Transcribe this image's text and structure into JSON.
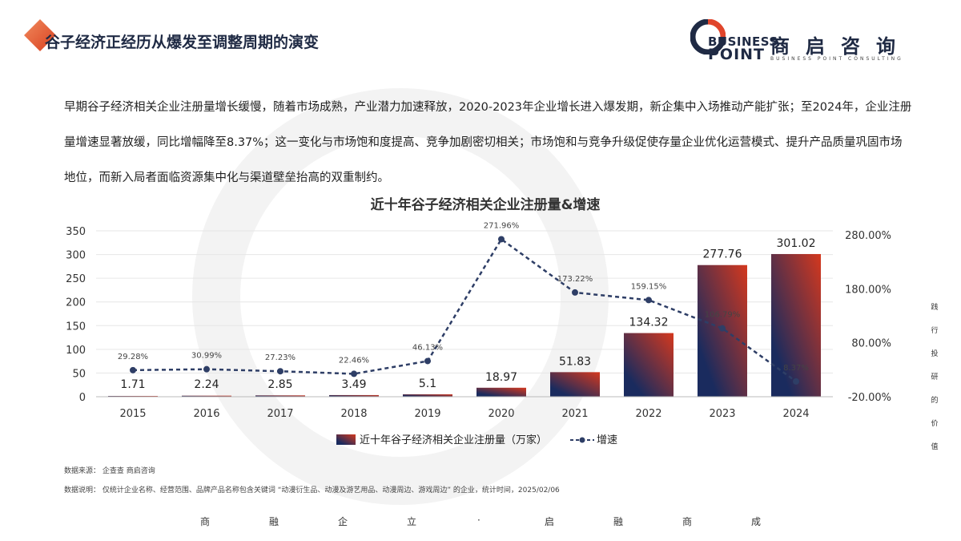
{
  "header": {
    "title": "谷子经济正经历从爆发至调整周期的演变"
  },
  "logo": {
    "en_line1": "BUSINESS",
    "en_line2": "POINT",
    "cn_name": "商启咨询",
    "en_subtitle": "BUSINESS POINT CONSULTING",
    "accent": "#e0452b",
    "brand": "#1f2a44"
  },
  "intro_text": "早期谷子经济相关企业注册量增长缓慢，随着市场成熟，产业潜力加速释放，2020-2023年企业增长进入爆发期，新企集中入场推动产能扩张；至2024年，企业注册量增速显著放缓，同比增幅降至8.37%；这一变化与市场饱和度提高、竞争加剧密切相关；市场饱和与竞争升级促使存量企业优化运营模式、提升产品质量巩固市场地位，而新入局者面临资源集中化与渠道壁垒抬高的双重制约。",
  "chart_data": {
    "type": "bar",
    "title": "近十年谷子经济相关企业注册量&增速",
    "categories": [
      "2015",
      "2016",
      "2017",
      "2018",
      "2019",
      "2020",
      "2021",
      "2022",
      "2023",
      "2024"
    ],
    "series": [
      {
        "name": "近十年谷子经济相关企业注册量（万家）",
        "type": "bar",
        "axis": "left",
        "values": [
          1.71,
          2.24,
          2.85,
          3.49,
          5.1,
          18.97,
          51.83,
          134.32,
          277.76,
          301.02
        ],
        "labels": [
          "1.71",
          "2.24",
          "2.85",
          "3.49",
          "5.1",
          "18.97",
          "51.83",
          "134.32",
          "277.76",
          "301.02"
        ]
      },
      {
        "name": "增速",
        "type": "line",
        "axis": "right",
        "values": [
          29.28,
          30.99,
          27.23,
          22.46,
          46.13,
          271.96,
          173.22,
          159.15,
          106.79,
          8.37
        ],
        "labels": [
          "29.28%",
          "30.99%",
          "27.23%",
          "22.46%",
          "46.13%",
          "271.96%",
          "173.22%",
          "159.15%",
          "106.79%",
          "8.37%"
        ]
      }
    ],
    "y_left": {
      "ticks": [
        "0",
        "50",
        "100",
        "150",
        "200",
        "250",
        "300",
        "350"
      ],
      "range": [
        0,
        350
      ]
    },
    "y_right": {
      "ticks": [
        "-20.00%",
        "80.00%",
        "180.00%",
        "280.00%"
      ],
      "range": [
        -20,
        287.5
      ]
    },
    "grid": true,
    "legend_position": "bottom",
    "colors": {
      "bar_dark": "#1a2b5e",
      "bar_light": "#d4381e",
      "line": "#2e3e66"
    }
  },
  "source": {
    "data_source": "数据来源： 企查查 商启咨询",
    "data_note": "数据说明： 仅统计企业名称、经营范围、品牌产品名称包含关键词 “动漫衍生品、动漫及游艺用品、动漫周边、游戏周边” 的企业，统计时间，2025/02/06"
  },
  "side_note": [
    "践",
    "行",
    "投",
    "研",
    "的",
    "价",
    "值"
  ],
  "motto": [
    "商",
    "融",
    "企",
    "立",
    "·",
    "启",
    "融",
    "商",
    "成"
  ]
}
